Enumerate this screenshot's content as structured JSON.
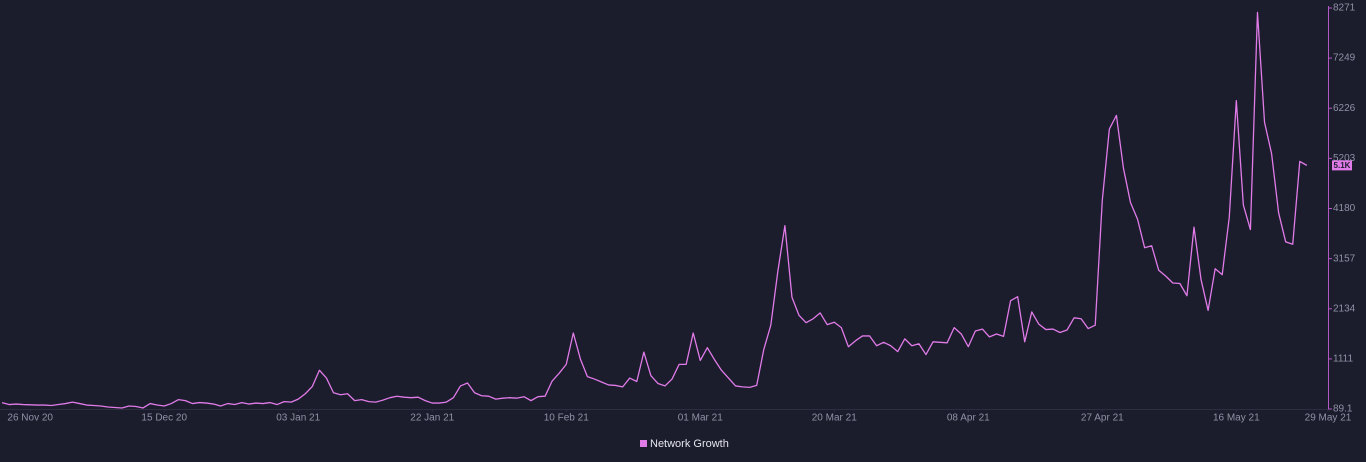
{
  "chart_data": {
    "type": "line",
    "x": [
      "2020-11-22",
      "2020-11-23",
      "2020-11-24",
      "2020-11-25",
      "2020-11-26",
      "2020-11-27",
      "2020-11-28",
      "2020-11-29",
      "2020-11-30",
      "2020-12-01",
      "2020-12-02",
      "2020-12-03",
      "2020-12-04",
      "2020-12-05",
      "2020-12-06",
      "2020-12-07",
      "2020-12-08",
      "2020-12-09",
      "2020-12-10",
      "2020-12-11",
      "2020-12-12",
      "2020-12-13",
      "2020-12-14",
      "2020-12-15",
      "2020-12-16",
      "2020-12-17",
      "2020-12-18",
      "2020-12-19",
      "2020-12-20",
      "2020-12-21",
      "2020-12-22",
      "2020-12-23",
      "2020-12-24",
      "2020-12-25",
      "2020-12-26",
      "2020-12-27",
      "2020-12-28",
      "2020-12-29",
      "2020-12-30",
      "2020-12-31",
      "2021-01-01",
      "2021-01-02",
      "2021-01-03",
      "2021-01-04",
      "2021-01-05",
      "2021-01-06",
      "2021-01-07",
      "2021-01-08",
      "2021-01-09",
      "2021-01-10",
      "2021-01-11",
      "2021-01-12",
      "2021-01-13",
      "2021-01-14",
      "2021-01-15",
      "2021-01-16",
      "2021-01-17",
      "2021-01-18",
      "2021-01-19",
      "2021-01-20",
      "2021-01-21",
      "2021-01-22",
      "2021-01-23",
      "2021-01-24",
      "2021-01-25",
      "2021-01-26",
      "2021-01-27",
      "2021-01-28",
      "2021-01-29",
      "2021-01-30",
      "2021-01-31",
      "2021-02-01",
      "2021-02-02",
      "2021-02-03",
      "2021-02-04",
      "2021-02-05",
      "2021-02-06",
      "2021-02-07",
      "2021-02-08",
      "2021-02-09",
      "2021-02-10",
      "2021-02-11",
      "2021-02-12",
      "2021-02-13",
      "2021-02-14",
      "2021-02-15",
      "2021-02-16",
      "2021-02-17",
      "2021-02-18",
      "2021-02-19",
      "2021-02-20",
      "2021-02-21",
      "2021-02-22",
      "2021-02-23",
      "2021-02-24",
      "2021-02-25",
      "2021-02-26",
      "2021-02-27",
      "2021-02-28",
      "2021-03-01",
      "2021-03-02",
      "2021-03-03",
      "2021-03-04",
      "2021-03-05",
      "2021-03-06",
      "2021-03-07",
      "2021-03-08",
      "2021-03-09",
      "2021-03-10",
      "2021-03-11",
      "2021-03-12",
      "2021-03-13",
      "2021-03-14",
      "2021-03-15",
      "2021-03-16",
      "2021-03-17",
      "2021-03-18",
      "2021-03-19",
      "2021-03-20",
      "2021-03-21",
      "2021-03-22",
      "2021-03-23",
      "2021-03-24",
      "2021-03-25",
      "2021-03-26",
      "2021-03-27",
      "2021-03-28",
      "2021-03-29",
      "2021-03-30",
      "2021-03-31",
      "2021-04-01",
      "2021-04-02",
      "2021-04-03",
      "2021-04-04",
      "2021-04-05",
      "2021-04-06",
      "2021-04-07",
      "2021-04-08",
      "2021-04-09",
      "2021-04-10",
      "2021-04-11",
      "2021-04-12",
      "2021-04-13",
      "2021-04-14",
      "2021-04-15",
      "2021-04-16",
      "2021-04-17",
      "2021-04-18",
      "2021-04-19",
      "2021-04-20",
      "2021-04-21",
      "2021-04-22",
      "2021-04-23",
      "2021-04-24",
      "2021-04-25",
      "2021-04-26",
      "2021-04-27",
      "2021-04-28",
      "2021-04-29",
      "2021-04-30",
      "2021-05-01",
      "2021-05-02",
      "2021-05-03",
      "2021-05-04",
      "2021-05-05",
      "2021-05-06",
      "2021-05-07",
      "2021-05-08",
      "2021-05-09",
      "2021-05-10",
      "2021-05-11",
      "2021-05-12",
      "2021-05-13",
      "2021-05-14",
      "2021-05-15",
      "2021-05-16",
      "2021-05-17",
      "2021-05-18",
      "2021-05-19",
      "2021-05-20",
      "2021-05-21",
      "2021-05-22",
      "2021-05-23",
      "2021-05-24",
      "2021-05-25",
      "2021-05-26"
    ],
    "series": [
      {
        "name": "Network Growth",
        "color": "#e07be8",
        "values": [
          220,
          180,
          190,
          180,
          175,
          170,
          170,
          160,
          180,
          200,
          230,
          200,
          170,
          160,
          150,
          130,
          120,
          110,
          150,
          140,
          110,
          200,
          170,
          150,
          200,
          280,
          260,
          200,
          220,
          210,
          190,
          150,
          200,
          180,
          220,
          190,
          210,
          200,
          220,
          180,
          240,
          230,
          290,
          400,
          550,
          880,
          720,
          420,
          380,
          400,
          260,
          280,
          240,
          230,
          270,
          320,
          350,
          330,
          320,
          330,
          260,
          210,
          210,
          230,
          320,
          560,
          620,
          420,
          360,
          350,
          290,
          310,
          320,
          310,
          340,
          260,
          340,
          350,
          660,
          820,
          1000,
          1640,
          1110,
          750,
          700,
          640,
          580,
          570,
          540,
          720,
          650,
          1250,
          770,
          610,
          560,
          700,
          1000,
          1000,
          1640,
          1080,
          1340,
          1100,
          880,
          720,
          560,
          540,
          530,
          570,
          1300,
          1800,
          2900,
          3830,
          2370,
          2000,
          1850,
          1930,
          2050,
          1810,
          1860,
          1750,
          1360,
          1480,
          1580,
          1580,
          1380,
          1450,
          1380,
          1260,
          1520,
          1380,
          1420,
          1200,
          1460,
          1450,
          1440,
          1750,
          1620,
          1360,
          1680,
          1720,
          1560,
          1620,
          1570,
          2300,
          2380,
          1460,
          2070,
          1820,
          1710,
          1720,
          1650,
          1700,
          1950,
          1930,
          1730,
          1800,
          4350,
          5800,
          6080,
          5000,
          4300,
          3960,
          3380,
          3420,
          2920,
          2800,
          2660,
          2650,
          2400,
          3800,
          2730,
          2100,
          2950,
          2830,
          4000,
          6380,
          4250,
          3750,
          8180,
          5940,
          5300,
          4090,
          3500,
          3450,
          5140,
          5060
        ]
      }
    ],
    "last_value_label": "5.1K",
    "xlim": [
      "2020-11-22",
      "2021-05-29"
    ],
    "xticks": [
      {
        "value": "2020-11-26",
        "label": "26 Nov 20"
      },
      {
        "value": "2020-12-15",
        "label": "15 Dec 20"
      },
      {
        "value": "2021-01-03",
        "label": "03 Jan 21"
      },
      {
        "value": "2021-01-22",
        "label": "22 Jan 21"
      },
      {
        "value": "2021-02-10",
        "label": "10 Feb 21"
      },
      {
        "value": "2021-03-01",
        "label": "01 Mar 21"
      },
      {
        "value": "2021-03-20",
        "label": "20 Mar 21"
      },
      {
        "value": "2021-04-08",
        "label": "08 Apr 21"
      },
      {
        "value": "2021-04-27",
        "label": "27 Apr 21"
      },
      {
        "value": "2021-05-16",
        "label": "16 May 21"
      },
      {
        "value": "2021-05-29",
        "label": "29 May 21"
      }
    ],
    "ylim": [
      89.1,
      8271
    ],
    "yticks": [
      89.1,
      1111,
      2134,
      3157,
      4180,
      5203,
      6226,
      7249,
      8271
    ],
    "grid": false
  }
}
